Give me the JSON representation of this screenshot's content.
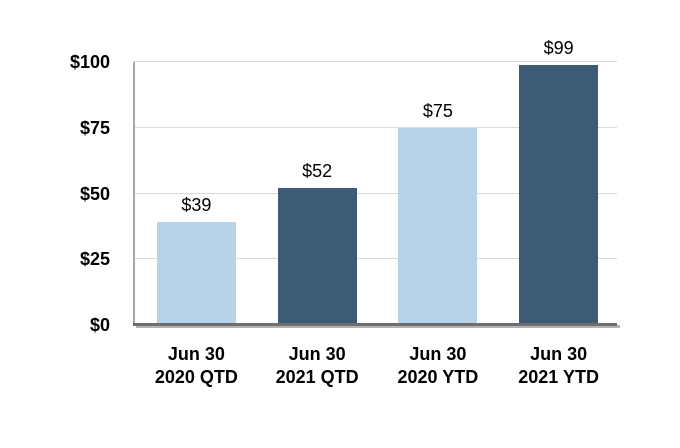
{
  "chart_data": {
    "type": "bar",
    "title": "",
    "categories": [
      "Jun 30 2020 QTD",
      "Jun 30 2021 QTD",
      "Jun 30 2020 YTD",
      "Jun 30 2021 YTD"
    ],
    "category_lines": [
      [
        "Jun 30",
        "2020 QTD"
      ],
      [
        "Jun 30",
        "2021 QTD"
      ],
      [
        "Jun 30",
        "2020 YTD"
      ],
      [
        "Jun 30",
        "2021 YTD"
      ]
    ],
    "values": [
      39,
      52,
      75,
      99
    ],
    "value_labels": [
      "$39",
      "$52",
      "$75",
      "$99"
    ],
    "bar_colors": [
      "#b8d3e8",
      "#3d5a77",
      "#b8d3e8",
      "#3d5a77"
    ],
    "y_axis": {
      "ticks": [
        0,
        25,
        50,
        75,
        100
      ],
      "tick_labels": [
        "$0",
        "$25",
        "$50",
        "$75",
        "$100"
      ],
      "range": [
        0,
        100
      ]
    },
    "grid": true,
    "legend": false,
    "colors": {
      "light_blue": "#b8d3e8",
      "dark_blue": "#3d5a77",
      "gridline": "#d9d9d9",
      "axis_line": "#a6a6a6",
      "baseline": "#6e6e6e",
      "text": "#000000"
    }
  }
}
